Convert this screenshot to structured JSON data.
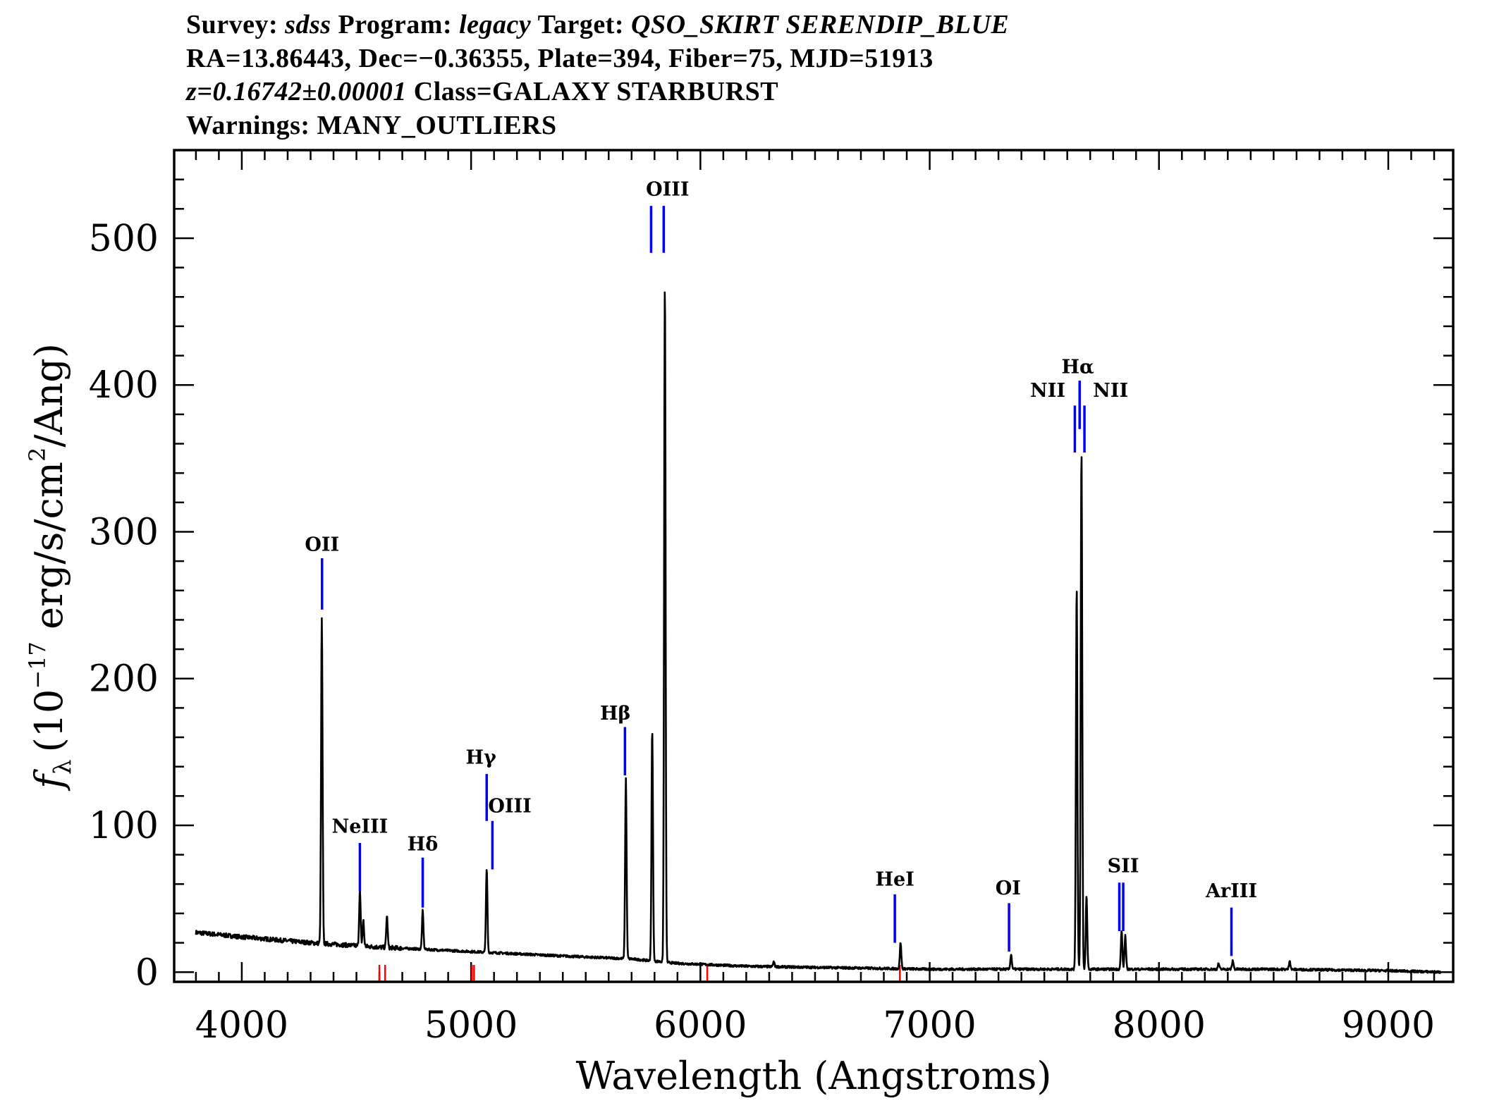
{
  "header": {
    "line1": {
      "survey_label": "Survey:",
      "survey": "sdss",
      "program_label": "Program:",
      "program": "legacy",
      "target_label": "Target:",
      "target": "QSO_SKIRT SERENDIP_BLUE"
    },
    "line2": "RA=13.86443, Dec=−0.36355, Plate=394, Fiber=75, MJD=51913",
    "line3": {
      "redshift": "z=0.16742±0.00001",
      "class": "Class=GALAXY STARBURST"
    },
    "line4": "Warnings: MANY_OUTLIERS"
  },
  "chart_data": {
    "type": "line",
    "xlabel": "Wavelength (Angstroms)",
    "ylabel": "fλ (10⁻¹⁷ erg/s/cm²/Ang)",
    "ylabel_parts": {
      "f": "f",
      "sub": "λ",
      "pre": "(10",
      "exp": "−17",
      "mid": " erg/s/cm",
      "exp2": "2",
      "post": "/Ang)"
    },
    "xlim": [
      3705,
      9283
    ],
    "ylim": [
      -6.6,
      560
    ],
    "xticks": [
      4000,
      5000,
      6000,
      7000,
      8000,
      9000
    ],
    "yticks": [
      0,
      100,
      200,
      300,
      400,
      500
    ],
    "grid": false,
    "spectrum_color": "#000000",
    "line_marker_color": "#0000ff",
    "mask_color": "#ff0000",
    "continuum": [
      [
        3800,
        27
      ],
      [
        4000,
        24
      ],
      [
        4300,
        20
      ],
      [
        4600,
        17
      ],
      [
        5000,
        14
      ],
      [
        5400,
        11
      ],
      [
        5700,
        9
      ],
      [
        5900,
        6
      ],
      [
        6200,
        4
      ],
      [
        6600,
        3
      ],
      [
        7000,
        2
      ],
      [
        7600,
        2
      ],
      [
        8000,
        2
      ],
      [
        8500,
        2
      ],
      [
        9000,
        1
      ],
      [
        9230,
        0
      ]
    ],
    "emission_peaks": [
      [
        4349,
        240
      ],
      [
        4515,
        55
      ],
      [
        4530,
        35
      ],
      [
        4633,
        38
      ],
      [
        4789,
        42
      ],
      [
        5068,
        70
      ],
      [
        5675,
        132
      ],
      [
        5790,
        165
      ],
      [
        5845,
        468
      ],
      [
        6320,
        7
      ],
      [
        6873,
        20
      ],
      [
        7355,
        12
      ],
      [
        7641,
        262
      ],
      [
        7662,
        355
      ],
      [
        7684,
        52
      ],
      [
        7837,
        28
      ],
      [
        7853,
        25
      ],
      [
        8260,
        6
      ],
      [
        8322,
        8
      ],
      [
        8570,
        8
      ]
    ],
    "line_markers": [
      {
        "wave": 4350,
        "top": 282,
        "bottom": 247
      },
      {
        "wave": 4515,
        "top": 88,
        "bottom": 55
      },
      {
        "wave": 4789,
        "top": 78,
        "bottom": 44
      },
      {
        "wave": 5068,
        "top": 135,
        "bottom": 103
      },
      {
        "wave": 5093,
        "top": 103,
        "bottom": 70
      },
      {
        "wave": 5671,
        "top": 167,
        "bottom": 134
      },
      {
        "wave": 5785,
        "top": 522,
        "bottom": 490
      },
      {
        "wave": 5840,
        "top": 522,
        "bottom": 490
      },
      {
        "wave": 6848,
        "top": 53,
        "bottom": 20
      },
      {
        "wave": 7346,
        "top": 47,
        "bottom": 14
      },
      {
        "wave": 7633,
        "top": 386,
        "bottom": 354
      },
      {
        "wave": 7654,
        "top": 403,
        "bottom": 370
      },
      {
        "wave": 7675,
        "top": 386,
        "bottom": 354
      },
      {
        "wave": 7827,
        "top": 61,
        "bottom": 28
      },
      {
        "wave": 7844,
        "top": 61,
        "bottom": 28
      },
      {
        "wave": 8316,
        "top": 44,
        "bottom": 11
      }
    ],
    "line_labels": [
      {
        "text": "OII",
        "wave": 4350,
        "flux": 287
      },
      {
        "text": "NeIII",
        "wave": 4515,
        "flux": 95
      },
      {
        "text": "Hδ",
        "wave": 4789,
        "flux": 83
      },
      {
        "text": "Hγ",
        "wave": 5043,
        "flux": 142
      },
      {
        "text": "OIII",
        "wave": 5169,
        "flux": 109
      },
      {
        "text": "Hβ",
        "wave": 5629,
        "flux": 172
      },
      {
        "text": "OIII",
        "wave": 5857,
        "flux": 529
      },
      {
        "text": "HeI",
        "wave": 6848,
        "flux": 59
      },
      {
        "text": "OI",
        "wave": 7342,
        "flux": 53
      },
      {
        "text": "NII",
        "wave": 7515,
        "flux": 392
      },
      {
        "text": "Hα",
        "wave": 7646,
        "flux": 408
      },
      {
        "text": "NII",
        "wave": 7789,
        "flux": 392
      },
      {
        "text": "SII",
        "wave": 7844,
        "flux": 68
      },
      {
        "text": "ArIII",
        "wave": 8316,
        "flux": 51
      }
    ],
    "mask_ticks": [
      4600,
      4625,
      5004,
      5013,
      6030,
      6870
    ]
  }
}
